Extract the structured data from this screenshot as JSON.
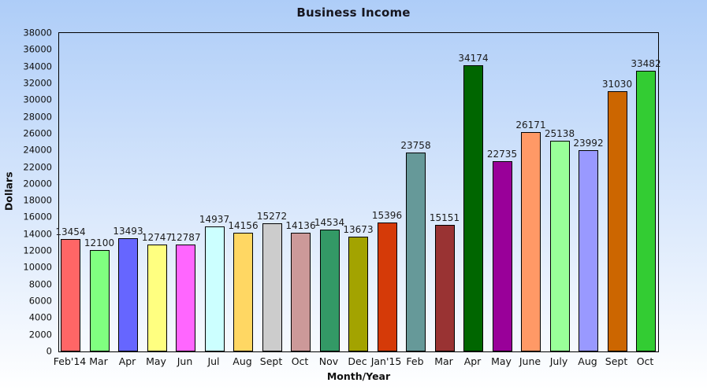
{
  "chart_data": {
    "type": "bar",
    "title": "Business Income",
    "xlabel": "Month/Year",
    "ylabel": "Dollars",
    "ylim": [
      0,
      38000
    ],
    "ytick_step": 2000,
    "yticks": [
      0,
      2000,
      4000,
      6000,
      8000,
      10000,
      12000,
      14000,
      16000,
      18000,
      20000,
      22000,
      24000,
      26000,
      28000,
      30000,
      32000,
      34000,
      36000,
      38000
    ],
    "grid": false,
    "legend": "none",
    "value_labels_shown": true,
    "categories": [
      "Feb'14",
      "Mar",
      "Apr",
      "May",
      "Jun",
      "Jul",
      "Aug",
      "Sept",
      "Oct",
      "Nov",
      "Dec",
      "Jan'15",
      "Feb",
      "Mar",
      "Apr",
      "May",
      "June",
      "July",
      "Aug",
      "Sept",
      "Oct"
    ],
    "values": [
      13454,
      12100,
      13493,
      12747,
      12787,
      14937,
      14156,
      15272,
      14136,
      14534,
      13673,
      15396,
      23758,
      15151,
      34174,
      22735,
      26171,
      25138,
      23992,
      31030,
      33482
    ],
    "bar_colors": [
      "#FF6666",
      "#80FF80",
      "#6666FF",
      "#FFFF80",
      "#FF66FF",
      "#CCFFFF",
      "#FFD763",
      "#CCCCCC",
      "#CC9999",
      "#339966",
      "#A3A300",
      "#D53A08",
      "#669999",
      "#993333",
      "#006600",
      "#990099",
      "#FF9966",
      "#99FF99",
      "#9999FF",
      "#CC6600",
      "#33CC33"
    ]
  },
  "style": {
    "background_top": "#AECDF8",
    "background_bottom": "#FFFFFF",
    "bar_border": "#000000",
    "axis_color": "#000000",
    "text_color": "#1A1A1A"
  }
}
